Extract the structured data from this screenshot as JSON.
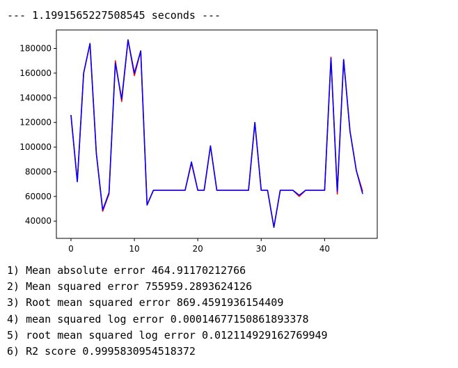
{
  "timing_text": "--- 1.1991565227508545 seconds ---",
  "metrics": [
    "1) Mean absolute error 464.91170212766",
    "2) Mean squared error 755959.2893624126",
    "3) Root mean squared error 869.4591936154409",
    "4) mean squared log error 0.00014677150861893378",
    "5) root mean squared log error 0.012114929162769949",
    "6) R2 score 0.9995830954518372"
  ],
  "chart_data": {
    "type": "line",
    "x": [
      0,
      1,
      2,
      3,
      4,
      5,
      6,
      7,
      8,
      9,
      10,
      11,
      12,
      13,
      14,
      15,
      16,
      17,
      18,
      19,
      20,
      21,
      22,
      23,
      24,
      25,
      26,
      27,
      28,
      29,
      30,
      31,
      32,
      33,
      34,
      35,
      36,
      37,
      38,
      39,
      40,
      41,
      42,
      43,
      44,
      45,
      46
    ],
    "series": [
      {
        "color": "#ff0000",
        "values": [
          126000,
          72000,
          160000,
          184000,
          95000,
          48000,
          62000,
          170000,
          137000,
          187000,
          158000,
          178000,
          53000,
          65000,
          65000,
          65000,
          65000,
          65000,
          65000,
          87000,
          65000,
          65000,
          101000,
          65000,
          65000,
          65000,
          65000,
          65000,
          65000,
          120000,
          65000,
          65000,
          35000,
          65000,
          65000,
          65000,
          60000,
          65000,
          65000,
          65000,
          65000,
          173000,
          62000,
          171000,
          113000,
          81000,
          64000
        ]
      },
      {
        "color": "#0000ff",
        "values": [
          126000,
          72000,
          160000,
          184000,
          95000,
          49000,
          63000,
          168000,
          139000,
          187000,
          160000,
          178000,
          53000,
          65000,
          65000,
          65000,
          65000,
          65000,
          65000,
          88000,
          65000,
          65000,
          101000,
          65000,
          65000,
          65000,
          65000,
          65000,
          65000,
          120000,
          65000,
          65000,
          35000,
          65000,
          65000,
          65000,
          61000,
          65000,
          65000,
          65000,
          65000,
          172000,
          64000,
          171000,
          113000,
          81000,
          62000
        ]
      }
    ],
    "xticks": [
      0,
      10,
      20,
      30,
      40
    ],
    "yticks": [
      40000,
      60000,
      80000,
      100000,
      120000,
      140000,
      160000,
      180000
    ],
    "xlim": [
      -2.3,
      48.3
    ],
    "ylim": [
      26000,
      195000
    ],
    "grid": false
  }
}
